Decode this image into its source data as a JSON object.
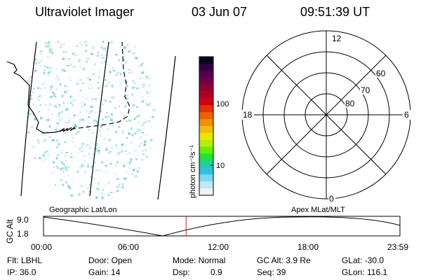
{
  "header": {
    "title": "Ultraviolet Imager",
    "date": "03 Jun 07",
    "time": "09:51:39 UT"
  },
  "map": {
    "label_left": "Geographic Lat/Lon",
    "label_right": "Apex MLat/MLT"
  },
  "colorbar": {
    "unit_label": "photon cm⁻²s⁻¹",
    "ticks": [
      "100",
      "10"
    ],
    "colors": [
      "#0a0020",
      "#300040",
      "#500050",
      "#700040",
      "#900030",
      "#b00020",
      "#d00010",
      "#e83000",
      "#f06000",
      "#f09000",
      "#f0c000",
      "#e8e800",
      "#b0f000",
      "#60f000",
      "#20e040",
      "#20d0a0",
      "#30c0e0",
      "#80d8f0",
      "#c0e8f0",
      "#e8f4f8"
    ]
  },
  "polar": {
    "mlt_labels": {
      "top": "12",
      "left": "18",
      "right": "6",
      "bottom": "0"
    },
    "lat_labels": [
      "60",
      "70",
      "80"
    ]
  },
  "timeline": {
    "ylabel": "GC Alt",
    "yticks": [
      "9.0",
      "1.8"
    ],
    "xticks": [
      "00:00",
      "06:00",
      "12:00",
      "18:00",
      "23:59"
    ],
    "current_time_fraction": 0.4
  },
  "info": {
    "filter": "Flt: LBHL",
    "ip": "IP: 36.0",
    "door": "Door: Open",
    "gain": "Gain: 14",
    "mode": "Mode: Normal",
    "dsp_label": "Dsp:",
    "dsp_value": "0.9",
    "gc_alt": "GC Alt: 3.9 Re",
    "seq": "Seq: 39",
    "glat": "GLat: -30.0",
    "glon": "GLon: 116.1"
  }
}
